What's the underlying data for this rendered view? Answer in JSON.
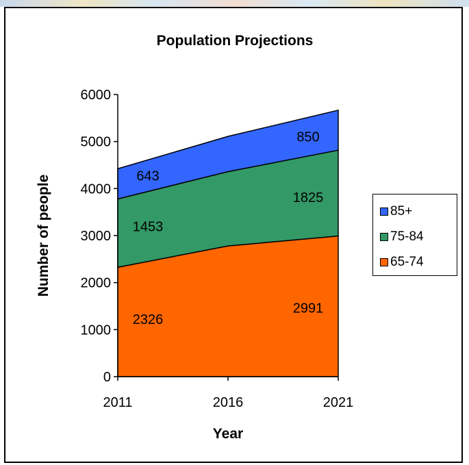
{
  "chart_data": {
    "type": "area",
    "stacked": true,
    "title": "Population Projections",
    "xlabel": "Year",
    "ylabel": "Number of people",
    "categories": [
      "2011",
      "2016",
      "2021"
    ],
    "ylim": [
      0,
      6000
    ],
    "yticks": [
      "0",
      "1000",
      "2000",
      "3000",
      "4000",
      "5000",
      "6000"
    ],
    "series": [
      {
        "name": "65-74",
        "color": "#ff6600",
        "values": [
          2326,
          2780,
          2991
        ]
      },
      {
        "name": "75-84",
        "color": "#339966",
        "values": [
          1453,
          1580,
          1825
        ]
      },
      {
        "name": "85+",
        "color": "#3366ff",
        "values": [
          643,
          750,
          850
        ]
      }
    ],
    "data_labels": [
      {
        "series": "65-74",
        "category": "2011",
        "text": "2326"
      },
      {
        "series": "65-74",
        "category": "2021",
        "text": "2991"
      },
      {
        "series": "75-84",
        "category": "2011",
        "text": "1453"
      },
      {
        "series": "75-84",
        "category": "2021",
        "text": "1825"
      },
      {
        "series": "85+",
        "category": "2011",
        "text": "643"
      },
      {
        "series": "85+",
        "category": "2021",
        "text": "850"
      }
    ],
    "legend": {
      "placement": "right",
      "order": [
        "85+",
        "75-84",
        "65-74"
      ]
    },
    "grid": false
  }
}
